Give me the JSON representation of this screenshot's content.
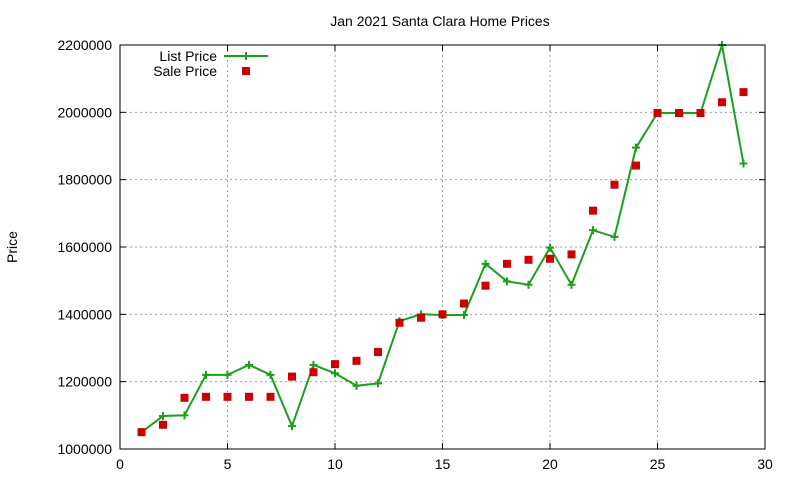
{
  "chart_data": {
    "type": "line",
    "title": "Jan 2021 Santa Clara Home Prices",
    "xlabel": "",
    "ylabel": "Price",
    "xlim": [
      0,
      30
    ],
    "ylim": [
      1000000,
      2200000
    ],
    "xticks": [
      "0",
      "5",
      "10",
      "15",
      "20",
      "25",
      "30"
    ],
    "yticks": [
      "1000000",
      "1200000",
      "1400000",
      "1600000",
      "1800000",
      "2000000",
      "2200000"
    ],
    "grid": true,
    "legend_position": "top-left",
    "series": [
      {
        "name": "List Price",
        "style": "line-with-plus-markers",
        "color": "#1aa01a",
        "x": [
          1,
          2,
          3,
          4,
          5,
          6,
          7,
          8,
          9,
          10,
          11,
          12,
          13,
          14,
          15,
          16,
          17,
          18,
          19,
          20,
          21,
          22,
          23,
          24,
          25,
          26,
          27,
          28,
          29
        ],
        "y": [
          1050000,
          1098000,
          1100000,
          1220000,
          1220000,
          1250000,
          1220000,
          1068000,
          1250000,
          1225000,
          1188000,
          1195000,
          1380000,
          1400000,
          1398000,
          1398000,
          1550000,
          1498000,
          1488000,
          1598000,
          1488000,
          1650000,
          1630000,
          1895000,
          1998000,
          1998000,
          1998000,
          2200000,
          1848000
        ]
      },
      {
        "name": "Sale Price",
        "style": "square-markers",
        "color": "#cc0000",
        "x": [
          1,
          2,
          3,
          4,
          5,
          6,
          7,
          8,
          9,
          10,
          11,
          12,
          13,
          14,
          15,
          16,
          17,
          18,
          19,
          20,
          21,
          22,
          23,
          24,
          25,
          26,
          27,
          28,
          29
        ],
        "y": [
          1050000,
          1072000,
          1152000,
          1155000,
          1155000,
          1155000,
          1155000,
          1215000,
          1228000,
          1252000,
          1262000,
          1288000,
          1375000,
          1390000,
          1400000,
          1432000,
          1485000,
          1550000,
          1562000,
          1565000,
          1578000,
          1708000,
          1785000,
          1842000,
          1998000,
          1998000,
          1998000,
          2030000,
          2060000
        ]
      }
    ]
  }
}
